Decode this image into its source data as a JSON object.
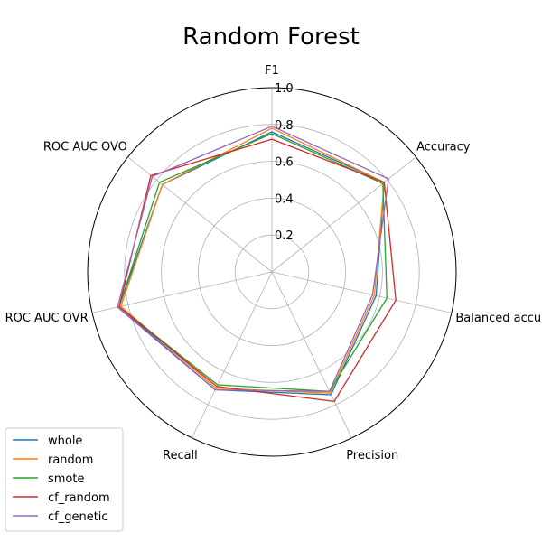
{
  "chart_data": {
    "type": "radar",
    "title": "Random Forest",
    "axes": [
      "F1",
      "Accuracy",
      "Balanced accuracy",
      "Precision",
      "Recall",
      "ROC AUC OVR",
      "ROC AUC OVO"
    ],
    "rlim": [
      0,
      1.0
    ],
    "ticks": [
      0.2,
      0.4,
      0.6,
      0.8,
      1.0
    ],
    "tick_labels": [
      "0.2",
      "0.4",
      "0.6",
      "0.8",
      "1.0"
    ],
    "grid": true,
    "legend_position": "lower-left",
    "series": [
      {
        "name": "whole",
        "color": "#1f77b4",
        "values": [
          0.76,
          0.78,
          0.58,
          0.74,
          0.71,
          0.85,
          0.76
        ]
      },
      {
        "name": "random",
        "color": "#ff7f0e",
        "values": [
          0.78,
          0.78,
          0.57,
          0.73,
          0.7,
          0.84,
          0.76
        ]
      },
      {
        "name": "smote",
        "color": "#2ca02c",
        "values": [
          0.75,
          0.77,
          0.64,
          0.72,
          0.68,
          0.85,
          0.78
        ]
      },
      {
        "name": "cf_random",
        "color": "#d62728",
        "values": [
          0.72,
          0.78,
          0.69,
          0.78,
          0.69,
          0.85,
          0.84
        ]
      },
      {
        "name": "cf_genetic",
        "color": "#9467bd",
        "values": [
          0.79,
          0.81,
          0.56,
          0.72,
          0.71,
          0.86,
          0.83
        ]
      }
    ]
  }
}
